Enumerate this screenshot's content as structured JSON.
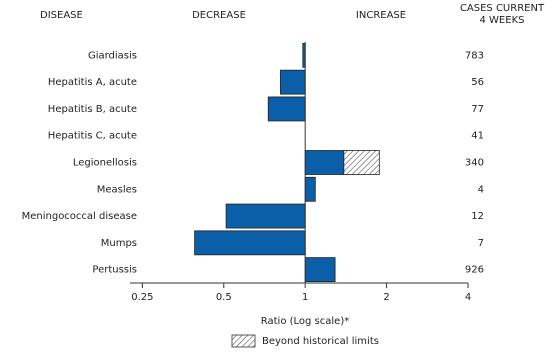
{
  "chart_data": {
    "type": "bar",
    "orientation": "horizontal",
    "log_scale": true,
    "headers": {
      "disease": "DISEASE",
      "decrease": "DECREASE",
      "increase": "INCREASE",
      "cases": [
        "CASES CURRENT",
        "4 WEEKS"
      ]
    },
    "categories": [
      "Giardiasis",
      "Hepatitis A, acute",
      "Hepatitis B, acute",
      "Hepatitis C, acute",
      "Legionellosis",
      "Measles",
      "Meningococcal disease",
      "Mumps",
      "Pertussis"
    ],
    "values": [
      0.98,
      0.81,
      0.73,
      1,
      1.88,
      1.09,
      0.51,
      0.39,
      1.29
    ],
    "limits": [
      null,
      null,
      null,
      null,
      1.39,
      null,
      null,
      null,
      null
    ],
    "cases": [
      783,
      56,
      77,
      41,
      340,
      4,
      12,
      7,
      926
    ],
    "color": "#0a5fa8",
    "xlim": [
      0.225,
      4
    ],
    "xticks": [
      0.25,
      0.5,
      1,
      2,
      4
    ],
    "x_label": "Ratio (Log scale)*",
    "legend": "Beyond historical limits"
  }
}
